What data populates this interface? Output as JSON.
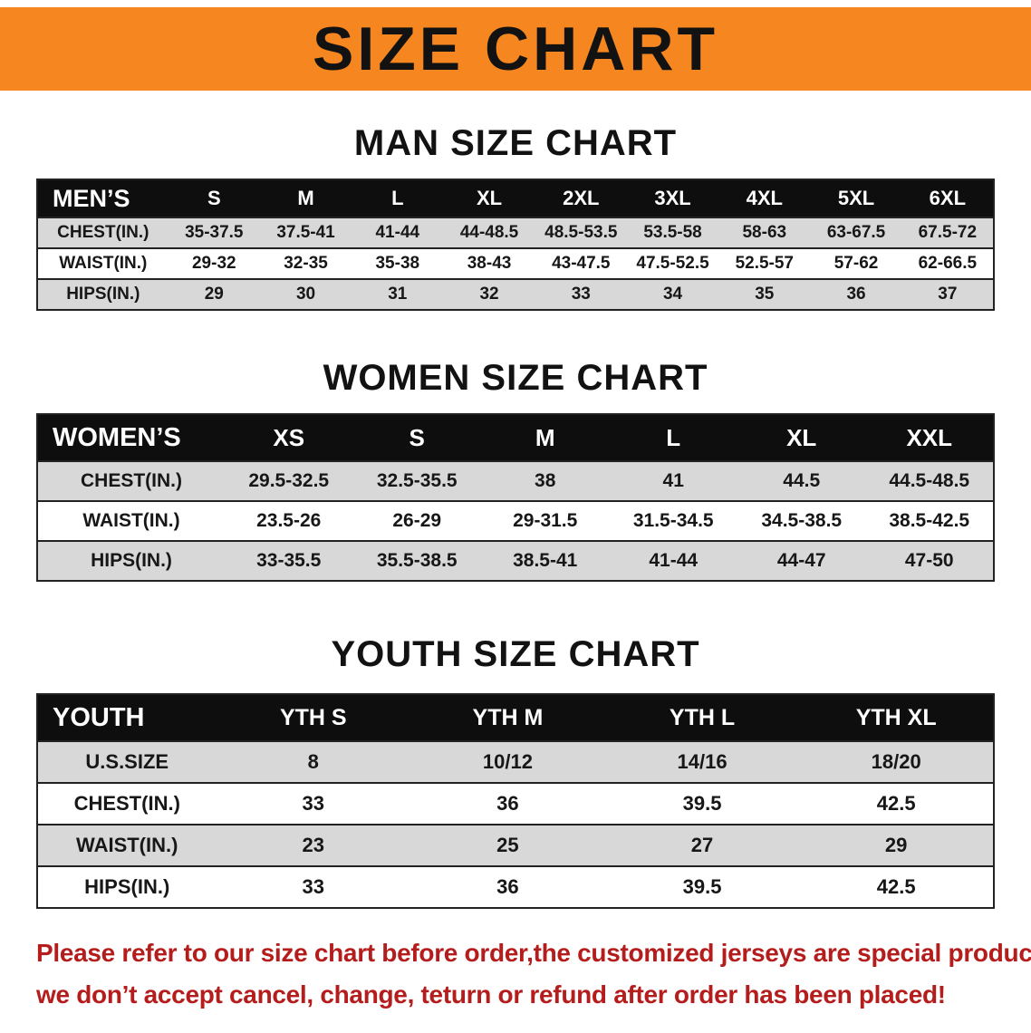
{
  "banner": {
    "title": "SIZE CHART",
    "bg_color": "#f6861f",
    "text_color": "#121212"
  },
  "sections": [
    {
      "id": "men",
      "heading": "MAN SIZE CHART",
      "table": {
        "header": [
          "MEN’S",
          "S",
          "M",
          "L",
          "XL",
          "2XL",
          "3XL",
          "4XL",
          "5XL",
          "6XL"
        ],
        "rows": [
          [
            "CHEST(IN.)",
            "35-37.5",
            "37.5-41",
            "41-44",
            "44-48.5",
            "48.5-53.5",
            "53.5-58",
            "58-63",
            "63-67.5",
            "67.5-72"
          ],
          [
            "WAIST(IN.)",
            "29-32",
            "32-35",
            "35-38",
            "38-43",
            "43-47.5",
            "47.5-52.5",
            "52.5-57",
            "57-62",
            "62-66.5"
          ],
          [
            "HIPS(IN.)",
            "29",
            "30",
            "31",
            "32",
            "33",
            "34",
            "35",
            "36",
            "37"
          ]
        ]
      }
    },
    {
      "id": "women",
      "heading": "WOMEN SIZE CHART",
      "table": {
        "header": [
          "WOMEN’S",
          "XS",
          "S",
          "M",
          "L",
          "XL",
          "XXL"
        ],
        "rows": [
          [
            "CHEST(IN.)",
            "29.5-32.5",
            "32.5-35.5",
            "38",
            "41",
            "44.5",
            "44.5-48.5"
          ],
          [
            "WAIST(IN.)",
            "23.5-26",
            "26-29",
            "29-31.5",
            "31.5-34.5",
            "34.5-38.5",
            "38.5-42.5"
          ],
          [
            "HIPS(IN.)",
            "33-35.5",
            "35.5-38.5",
            "38.5-41",
            "41-44",
            "44-47",
            "47-50"
          ]
        ]
      }
    },
    {
      "id": "youth",
      "heading": "YOUTH SIZE CHART",
      "table": {
        "header": [
          "YOUTH",
          "YTH S",
          "YTH M",
          "YTH L",
          "YTH XL"
        ],
        "rows": [
          [
            "U.S.SIZE",
            "8",
            "10/12",
            "14/16",
            "18/20"
          ],
          [
            "CHEST(IN.)",
            "33",
            "36",
            "39.5",
            "42.5"
          ],
          [
            "WAIST(IN.)",
            "23",
            "25",
            "27",
            "29"
          ],
          [
            "HIPS(IN.)",
            "33",
            "36",
            "39.5",
            "42.5"
          ]
        ]
      }
    }
  ],
  "footer": {
    "line1": "Please refer to our size chart before order,the customized jerseys are special products,",
    "line2": "we don’t accept cancel, change, teturn or refund after order has been placed!",
    "text_color": "#b51d1d"
  }
}
